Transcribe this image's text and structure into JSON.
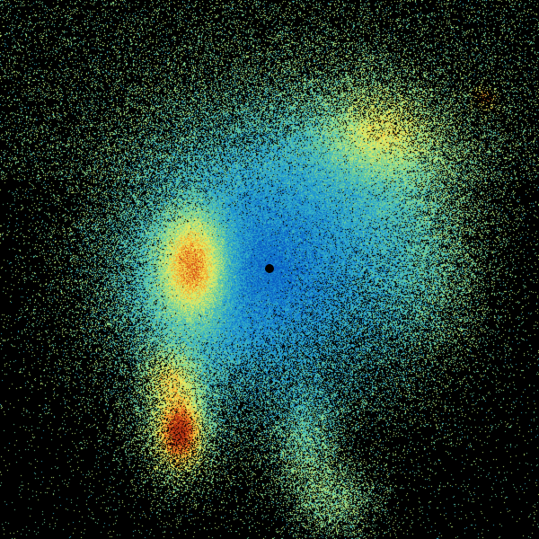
{
  "image": {
    "kind": "radar-reflectivity-scan",
    "background_color": "#000000",
    "color_ramp": [
      "#0a5fc4",
      "#1a8fd0",
      "#38b2c6",
      "#6fcf9a",
      "#b9e47a",
      "#eee85a",
      "#f2a62e",
      "#d4521a",
      "#a82a10"
    ],
    "radar_site_marker_color": "#000000"
  }
}
